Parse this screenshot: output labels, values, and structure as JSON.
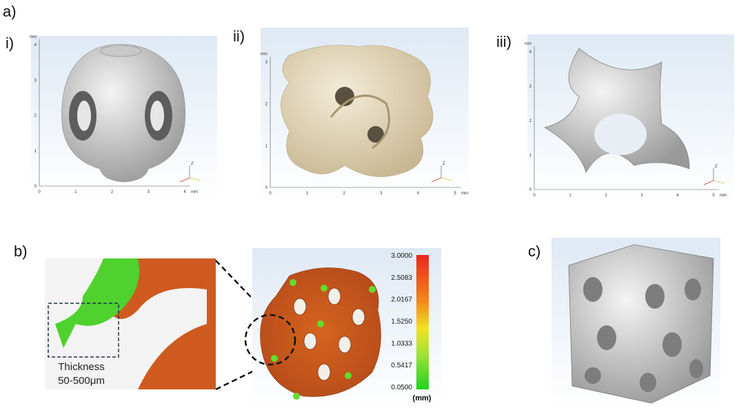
{
  "panel_labels": {
    "a": "a)",
    "i": "i)",
    "ii": "ii)",
    "iii": "iii)",
    "b": "b)",
    "c": "c)"
  },
  "viewports": [
    {
      "y_ticks": [
        "0",
        "1",
        "2",
        "3",
        "4"
      ],
      "y_unit": "mm",
      "x_ticks": [
        "0",
        "1",
        "2",
        "3",
        "4"
      ],
      "x_unit": "mm",
      "axis_label": "Z"
    },
    {
      "y_ticks": [
        "0",
        "1",
        "2",
        "3"
      ],
      "y_unit": "mm",
      "x_ticks": [
        "0",
        "1",
        "2",
        "3",
        "4",
        "5"
      ],
      "x_unit": "mm",
      "axis_label": "Z"
    },
    {
      "y_ticks": [
        "0",
        "1",
        "2",
        "3",
        "4"
      ],
      "y_unit": "mm",
      "x_ticks": [
        "0",
        "1",
        "2",
        "3",
        "4",
        "5"
      ],
      "x_unit": "mm",
      "axis_label": "Z"
    }
  ],
  "annotation": {
    "title": "Thickness",
    "range": "50-500μm"
  },
  "colorbar": {
    "labels": [
      "3.0000",
      "2.5083",
      "2.0167",
      "1.5250",
      "1.0333",
      "0.5417",
      "0.0500"
    ],
    "unit": "(mm)"
  }
}
